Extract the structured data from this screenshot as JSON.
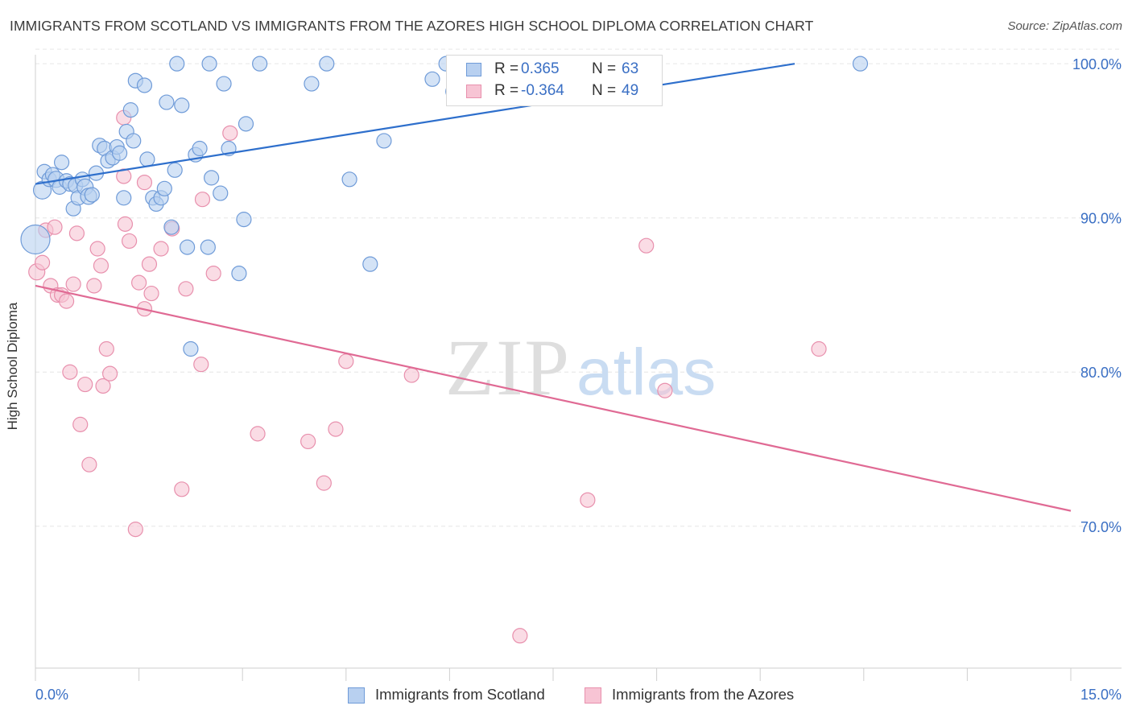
{
  "title": "IMMIGRANTS FROM SCOTLAND VS IMMIGRANTS FROM THE AZORES HIGH SCHOOL DIPLOMA CORRELATION CHART",
  "source": "Source: ZipAtlas.com",
  "watermark": {
    "zip": "ZIP",
    "atlas": "atlas"
  },
  "legend": {
    "r_label": "R =",
    "n_label": "N =",
    "rows": [
      {
        "r": "0.365",
        "n": "63"
      },
      {
        "r": "-0.364",
        "n": "49"
      }
    ]
  },
  "colors": {
    "scotland_fill": "#b8d0f0",
    "scotland_stroke": "#6f9bd8",
    "scotland_line": "#2e6fcc",
    "azores_fill": "#f7c4d4",
    "azores_stroke": "#e890ad",
    "azores_line": "#e06a94",
    "tick_label": "#3a6fc4",
    "grid": "#e6e6e6"
  },
  "chart_data": {
    "type": "scatter",
    "title": "IMMIGRANTS FROM SCOTLAND VS IMMIGRANTS FROM THE AZORES HIGH SCHOOL DIPLOMA CORRELATION CHART",
    "xlabel": "",
    "ylabel": "High School Diploma",
    "xlim": [
      0,
      15
    ],
    "ylim": [
      60.8,
      101.0
    ],
    "x_tick_labels": [
      "0.0%",
      "15.0%"
    ],
    "y_ticks": [
      70,
      80,
      90,
      100
    ],
    "y_tick_labels": [
      "70.0%",
      "80.0%",
      "90.0%",
      "100.0%"
    ],
    "grid": true,
    "legend_position": "top-center",
    "series": [
      {
        "name": "Immigrants from Scotland",
        "r": 0.365,
        "n": 63,
        "trend": [
          [
            0.0,
            92.2
          ],
          [
            11.0,
            100.0
          ]
        ],
        "points": [
          [
            0.0,
            88.6,
            18
          ],
          [
            0.1,
            91.8,
            11
          ],
          [
            0.13,
            93.0,
            9
          ],
          [
            0.2,
            92.5,
            9
          ],
          [
            0.25,
            92.8,
            9
          ],
          [
            0.3,
            92.5,
            10
          ],
          [
            0.35,
            92.0,
            9
          ],
          [
            0.38,
            93.6,
            9
          ],
          [
            0.45,
            92.4,
            9
          ],
          [
            0.5,
            92.2,
            9
          ],
          [
            0.55,
            90.6,
            9
          ],
          [
            0.58,
            92.1,
            9
          ],
          [
            0.62,
            91.3,
            9
          ],
          [
            0.68,
            92.5,
            9
          ],
          [
            0.72,
            92.0,
            10
          ],
          [
            0.77,
            91.4,
            10
          ],
          [
            0.82,
            91.5,
            9
          ],
          [
            0.88,
            92.9,
            9
          ],
          [
            0.93,
            94.7,
            9
          ],
          [
            1.0,
            94.5,
            9
          ],
          [
            1.05,
            93.7,
            9
          ],
          [
            1.12,
            93.9,
            9
          ],
          [
            1.18,
            94.6,
            9
          ],
          [
            1.22,
            94.2,
            9
          ],
          [
            1.28,
            91.3,
            9
          ],
          [
            1.32,
            95.6,
            9
          ],
          [
            1.38,
            97.0,
            9
          ],
          [
            1.42,
            95.0,
            9
          ],
          [
            1.45,
            98.9,
            9
          ],
          [
            1.58,
            98.6,
            9
          ],
          [
            1.62,
            93.8,
            9
          ],
          [
            1.7,
            91.3,
            9
          ],
          [
            1.75,
            90.9,
            9
          ],
          [
            1.82,
            91.3,
            9
          ],
          [
            1.87,
            91.9,
            9
          ],
          [
            1.9,
            97.5,
            9
          ],
          [
            1.97,
            89.4,
            9
          ],
          [
            2.02,
            93.1,
            9
          ],
          [
            2.05,
            100.0,
            9
          ],
          [
            2.12,
            97.3,
            9
          ],
          [
            2.2,
            88.1,
            9
          ],
          [
            2.25,
            81.5,
            9
          ],
          [
            2.32,
            94.1,
            9
          ],
          [
            2.38,
            94.5,
            9
          ],
          [
            2.5,
            88.1,
            9
          ],
          [
            2.52,
            100.0,
            9
          ],
          [
            2.55,
            92.6,
            9
          ],
          [
            2.68,
            91.6,
            9
          ],
          [
            2.73,
            98.7,
            9
          ],
          [
            2.8,
            94.5,
            9
          ],
          [
            2.95,
            86.4,
            9
          ],
          [
            3.02,
            89.9,
            9
          ],
          [
            3.05,
            96.1,
            9
          ],
          [
            3.25,
            100.0,
            9
          ],
          [
            4.0,
            98.7,
            9
          ],
          [
            4.22,
            100.0,
            9
          ],
          [
            4.55,
            92.5,
            9
          ],
          [
            4.85,
            87.0,
            9
          ],
          [
            5.05,
            95.0,
            9
          ],
          [
            5.75,
            99.0,
            9
          ],
          [
            5.95,
            100.0,
            9
          ],
          [
            6.05,
            98.2,
            9
          ],
          [
            11.95,
            100.0,
            9
          ]
        ]
      },
      {
        "name": "Immigrants from the Azores",
        "r": -0.364,
        "n": 49,
        "trend": [
          [
            0.0,
            85.6
          ],
          [
            15.0,
            71.0
          ]
        ],
        "points": [
          [
            0.02,
            86.5,
            10
          ],
          [
            0.1,
            87.1,
            9
          ],
          [
            0.15,
            89.2,
            9
          ],
          [
            0.22,
            85.6,
            9
          ],
          [
            0.28,
            89.4,
            9
          ],
          [
            0.32,
            85.0,
            9
          ],
          [
            0.38,
            85.0,
            9
          ],
          [
            0.45,
            84.6,
            9
          ],
          [
            0.5,
            80.0,
            9
          ],
          [
            0.55,
            85.7,
            9
          ],
          [
            0.6,
            89.0,
            9
          ],
          [
            0.65,
            76.6,
            9
          ],
          [
            0.72,
            79.2,
            9
          ],
          [
            0.78,
            74.0,
            9
          ],
          [
            0.85,
            85.6,
            9
          ],
          [
            0.9,
            88.0,
            9
          ],
          [
            0.95,
            86.9,
            9
          ],
          [
            0.98,
            79.1,
            9
          ],
          [
            1.03,
            81.5,
            9
          ],
          [
            1.08,
            79.9,
            9
          ],
          [
            1.28,
            96.5,
            9
          ],
          [
            1.3,
            89.6,
            9
          ],
          [
            1.36,
            88.5,
            9
          ],
          [
            1.45,
            69.8,
            9
          ],
          [
            1.5,
            85.8,
            9
          ],
          [
            1.58,
            84.1,
            9
          ],
          [
            1.65,
            87.0,
            9
          ],
          [
            1.68,
            85.1,
            9
          ],
          [
            1.82,
            88.0,
            9
          ],
          [
            1.98,
            89.3,
            9
          ],
          [
            2.12,
            72.4,
            9
          ],
          [
            2.18,
            85.4,
            9
          ],
          [
            2.4,
            80.5,
            9
          ],
          [
            2.42,
            91.2,
            9
          ],
          [
            2.58,
            86.4,
            9
          ],
          [
            2.82,
            95.5,
            9
          ],
          [
            3.22,
            76.0,
            9
          ],
          [
            3.95,
            75.5,
            9
          ],
          [
            4.18,
            72.8,
            9
          ],
          [
            4.35,
            76.3,
            9
          ],
          [
            4.5,
            80.7,
            9
          ],
          [
            5.45,
            79.8,
            9
          ],
          [
            7.02,
            62.9,
            9
          ],
          [
            8.0,
            71.7,
            9
          ],
          [
            8.85,
            88.2,
            9
          ],
          [
            9.12,
            78.8,
            9
          ],
          [
            11.35,
            81.5,
            9
          ],
          [
            1.58,
            92.3,
            9
          ],
          [
            1.28,
            92.7,
            9
          ]
        ]
      }
    ]
  }
}
